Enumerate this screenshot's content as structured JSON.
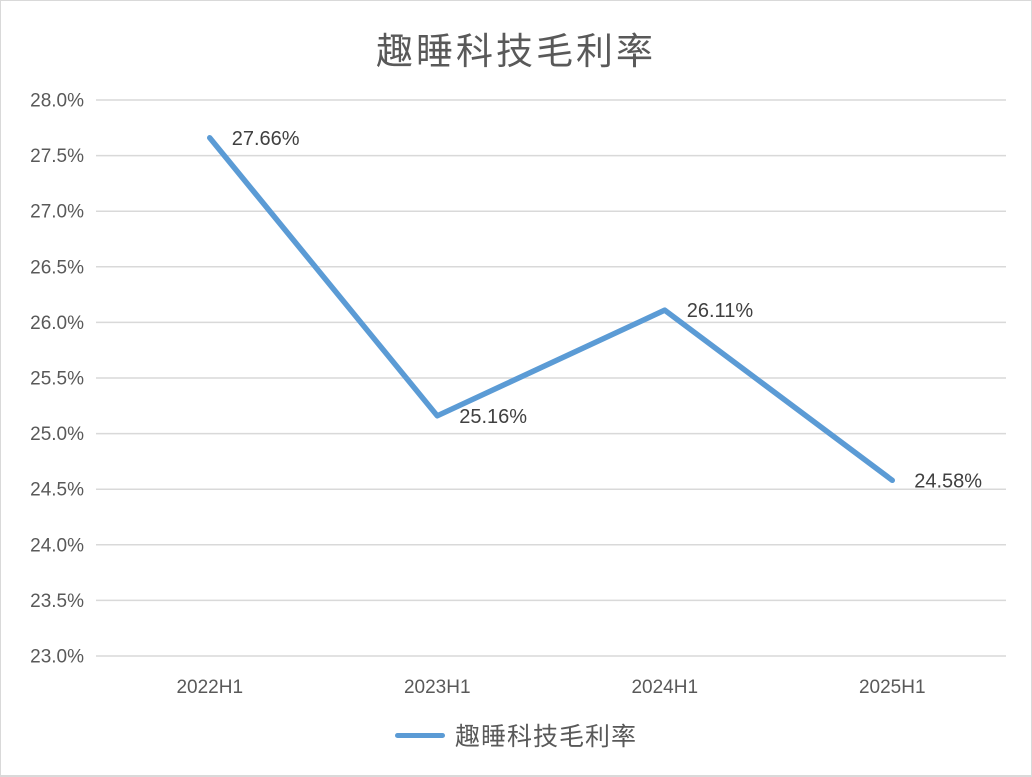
{
  "chart_data": {
    "type": "line",
    "title": "趣睡科技毛利率",
    "categories": [
      "2022H1",
      "2023H1",
      "2024H1",
      "2025H1"
    ],
    "series": [
      {
        "name": "趣睡科技毛利率",
        "values": [
          27.66,
          25.16,
          26.11,
          24.58
        ],
        "data_labels": [
          "27.66%",
          "25.16%",
          "26.11%",
          "24.58%"
        ]
      }
    ],
    "ylim": [
      23.0,
      28.0
    ],
    "ytick_step": 0.5,
    "ytick_labels": [
      "23.0%",
      "23.5%",
      "24.0%",
      "24.5%",
      "25.0%",
      "25.5%",
      "26.0%",
      "26.5%",
      "27.0%",
      "27.5%",
      "28.0%"
    ],
    "grid": true,
    "legend_position": "bottom",
    "colors": {
      "line": "#5B9BD5",
      "gridline": "#D9D9D9",
      "axis_text": "#595959",
      "data_label_text": "#404040",
      "title_text": "#595959"
    }
  },
  "legend": {
    "label": "趣睡科技毛利率"
  }
}
